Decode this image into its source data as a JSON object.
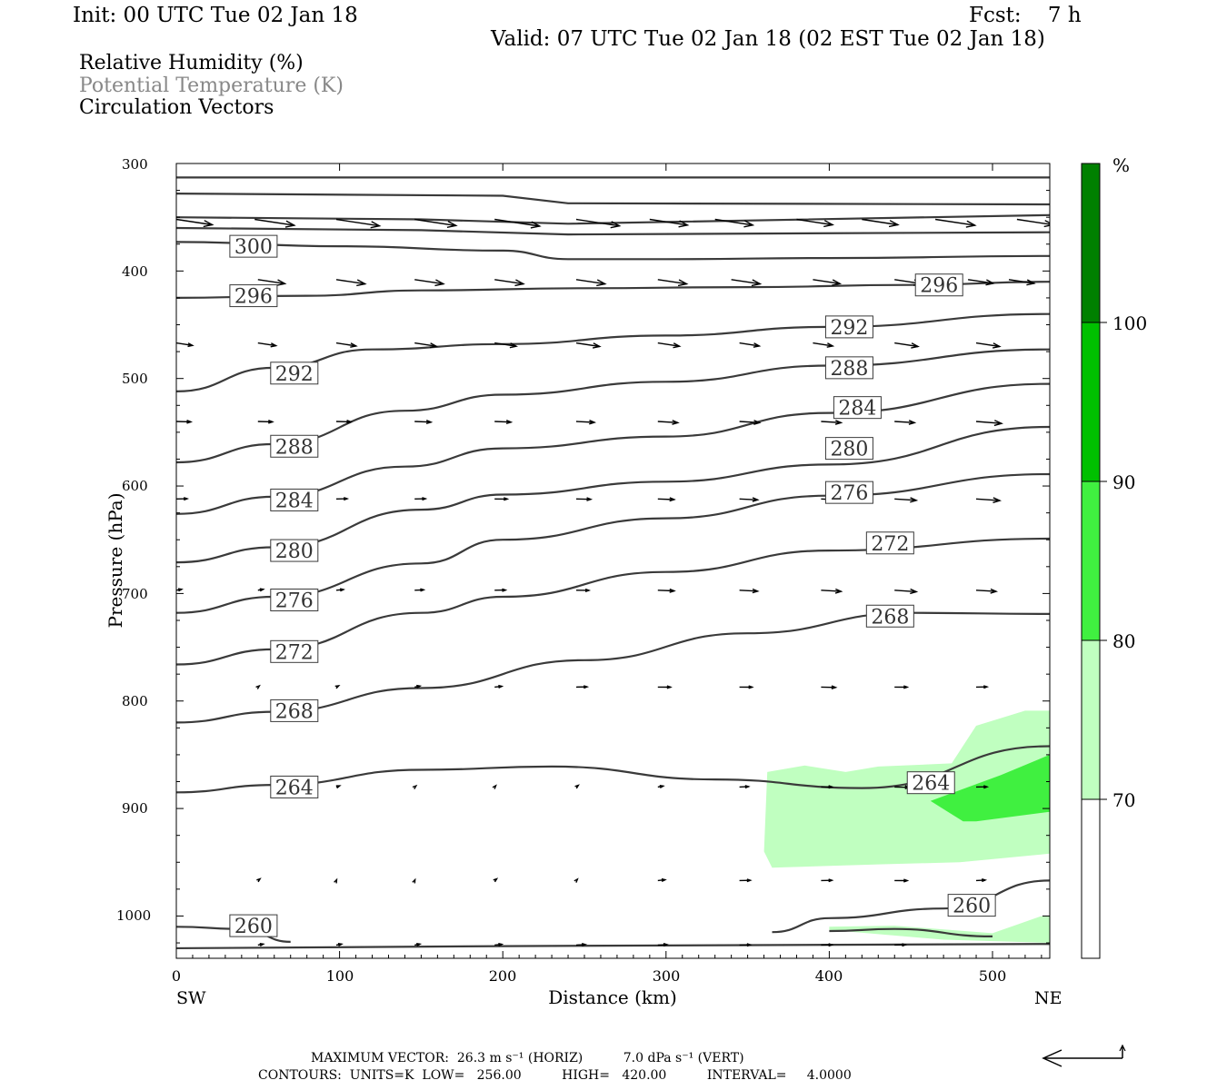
{
  "header": {
    "init": "Init: 00 UTC Tue 02 Jan 18",
    "fcst": "Fcst:    7 h",
    "valid": "Valid: 07 UTC Tue 02 Jan 18 (02 EST Tue 02 Jan 18)"
  },
  "legend": {
    "rh": "Relative Humidity (%)",
    "theta": "Potential Temperature (K)",
    "vectors": "Circulation Vectors"
  },
  "colors": {
    "theta_line": "#3a3a3a",
    "rh_70": "#c0ffc0",
    "rh_80": "#40f040",
    "rh_90": "#00c000",
    "rh_100": "#008000"
  },
  "chart_data": {
    "type": "cross-section",
    "xlabel": "Distance (km)",
    "ylabel": "Pressure (hPa)",
    "xlim": [
      0,
      535
    ],
    "ylim": [
      1030,
      300
    ],
    "x_ticks": [
      "0",
      "100",
      "200",
      "300",
      "400",
      "500"
    ],
    "y_ticks": [
      "300",
      "400",
      "500",
      "600",
      "700",
      "800",
      "900",
      "1000"
    ],
    "x_end_labels": {
      "left": "SW",
      "right": "NE"
    },
    "colorbar": {
      "unit": "%",
      "levels": [
        "70",
        "80",
        "90",
        "100"
      ]
    },
    "theta_contours": [
      {
        "label": "300",
        "label_pos": [
          25,
          377
        ],
        "points": [
          [
            0,
            373
          ],
          [
            100,
            377
          ],
          [
            200,
            381
          ],
          [
            240,
            389
          ],
          [
            300,
            389
          ],
          [
            400,
            388
          ],
          [
            535,
            386
          ]
        ]
      },
      {
        "label": "296",
        "label_pos": [
          25,
          423
        ],
        "points": [
          [
            0,
            425
          ],
          [
            80,
            423
          ],
          [
            150,
            418
          ],
          [
            250,
            416
          ],
          [
            350,
            415
          ],
          [
            450,
            413
          ],
          [
            535,
            410
          ]
        ]
      },
      {
        "label": "296",
        "label_pos": [
          445,
          413
        ],
        "points": []
      },
      {
        "label": "292",
        "label_pos": [
          50,
          495
        ],
        "points": [
          [
            0,
            512
          ],
          [
            60,
            490
          ],
          [
            120,
            473
          ],
          [
            200,
            468
          ],
          [
            300,
            460
          ],
          [
            400,
            452
          ],
          [
            535,
            440
          ]
        ]
      },
      {
        "label": "292",
        "label_pos": [
          390,
          452
        ],
        "points": []
      },
      {
        "label": "288",
        "label_pos": [
          50,
          563
        ],
        "points": [
          [
            0,
            578
          ],
          [
            60,
            561
          ],
          [
            140,
            530
          ],
          [
            200,
            515
          ],
          [
            300,
            503
          ],
          [
            400,
            488
          ],
          [
            535,
            473
          ]
        ]
      },
      {
        "label": "288",
        "label_pos": [
          390,
          490
        ],
        "points": []
      },
      {
        "label": "284",
        "label_pos": [
          50,
          613
        ],
        "points": [
          [
            0,
            626
          ],
          [
            60,
            610
          ],
          [
            140,
            582
          ],
          [
            200,
            565
          ],
          [
            300,
            554
          ],
          [
            400,
            532
          ],
          [
            535,
            505
          ]
        ]
      },
      {
        "label": "284",
        "label_pos": [
          395,
          527
        ],
        "points": []
      },
      {
        "label": "280",
        "label_pos": [
          50,
          660
        ],
        "points": [
          [
            0,
            671
          ],
          [
            60,
            657
          ],
          [
            150,
            622
          ],
          [
            200,
            608
          ],
          [
            300,
            596
          ],
          [
            400,
            580
          ],
          [
            535,
            545
          ]
        ]
      },
      {
        "label": "280",
        "label_pos": [
          390,
          565
        ],
        "points": []
      },
      {
        "label": "276",
        "label_pos": [
          50,
          706
        ],
        "points": [
          [
            0,
            718
          ],
          [
            60,
            703
          ],
          [
            150,
            672
          ],
          [
            200,
            650
          ],
          [
            300,
            630
          ],
          [
            400,
            609
          ],
          [
            535,
            589
          ]
        ]
      },
      {
        "label": "276",
        "label_pos": [
          390,
          606
        ],
        "points": []
      },
      {
        "label": "272",
        "label_pos": [
          50,
          754
        ],
        "points": [
          [
            0,
            766
          ],
          [
            60,
            752
          ],
          [
            150,
            718
          ],
          [
            200,
            703
          ],
          [
            300,
            680
          ],
          [
            400,
            660
          ],
          [
            535,
            649
          ]
        ]
      },
      {
        "label": "272",
        "label_pos": [
          415,
          653
        ],
        "points": []
      },
      {
        "label": "268",
        "label_pos": [
          50,
          809
        ],
        "points": [
          [
            0,
            820
          ],
          [
            60,
            810
          ],
          [
            150,
            788
          ],
          [
            250,
            762
          ],
          [
            350,
            737
          ],
          [
            450,
            718
          ],
          [
            535,
            719
          ]
        ]
      },
      {
        "label": "268",
        "label_pos": [
          415,
          721
        ],
        "points": []
      },
      {
        "label": "264",
        "label_pos": [
          50,
          880
        ],
        "points": [
          [
            0,
            885
          ],
          [
            60,
            878
          ],
          [
            150,
            864
          ],
          [
            230,
            861
          ],
          [
            330,
            873
          ],
          [
            420,
            881
          ],
          [
            535,
            842
          ]
        ]
      },
      {
        "label": "264",
        "label_pos": [
          440,
          876
        ],
        "points": []
      },
      {
        "label": "260",
        "label_pos": [
          25,
          1009
        ],
        "points": [
          [
            0,
            1010
          ],
          [
            40,
            1012
          ],
          [
            70,
            1024
          ]
        ]
      },
      {
        "label": "260",
        "label_pos": [
          465,
          990
        ],
        "points": [
          [
            365,
            1015
          ],
          [
            400,
            1002
          ],
          [
            470,
            993
          ],
          [
            535,
            967
          ]
        ]
      },
      {
        "label": "",
        "label_pos": null,
        "points": [
          [
            400,
            1014
          ],
          [
            440,
            1012
          ],
          [
            500,
            1019
          ]
        ]
      }
    ],
    "rh_regions": [
      {
        "level": "70-80",
        "points": [
          [
            362,
            866
          ],
          [
            385,
            860
          ],
          [
            410,
            866
          ],
          [
            430,
            861
          ],
          [
            475,
            858
          ],
          [
            490,
            823
          ],
          [
            520,
            809
          ],
          [
            535,
            809
          ],
          [
            535,
            942
          ],
          [
            480,
            950
          ],
          [
            430,
            952
          ],
          [
            365,
            955
          ],
          [
            360,
            940
          ]
        ]
      },
      {
        "level": "80-90",
        "points": [
          [
            462,
            893
          ],
          [
            505,
            869
          ],
          [
            535,
            850
          ],
          [
            535,
            903
          ],
          [
            490,
            912
          ],
          [
            482,
            912
          ]
        ]
      },
      {
        "level": "70-80",
        "points": [
          [
            400,
            1010
          ],
          [
            440,
            1009
          ],
          [
            500,
            1016
          ],
          [
            530,
            1000
          ],
          [
            535,
            1000
          ],
          [
            535,
            1025
          ],
          [
            470,
            1022
          ],
          [
            400,
            1013
          ]
        ]
      }
    ],
    "vectors_rows": [
      {
        "p": 352,
        "u": [
          [
            0,
            40
          ],
          [
            48,
            44
          ],
          [
            98,
            48
          ],
          [
            146,
            46
          ],
          [
            195,
            50
          ],
          [
            245,
            48
          ],
          [
            290,
            42
          ],
          [
            330,
            42
          ],
          [
            380,
            40
          ],
          [
            420,
            40
          ],
          [
            465,
            44
          ],
          [
            515,
            40
          ]
        ]
      },
      {
        "p": 408,
        "u": [
          [
            50,
            30
          ],
          [
            98,
            32
          ],
          [
            146,
            32
          ],
          [
            195,
            32
          ],
          [
            245,
            32
          ],
          [
            295,
            32
          ],
          [
            340,
            32
          ],
          [
            390,
            30
          ],
          [
            440,
            30
          ],
          [
            485,
            28
          ],
          [
            510,
            28
          ]
        ]
      },
      {
        "p": 467,
        "u": [
          [
            0,
            18
          ],
          [
            50,
            20
          ],
          [
            98,
            22
          ],
          [
            146,
            24
          ],
          [
            195,
            24
          ],
          [
            245,
            26
          ],
          [
            295,
            24
          ],
          [
            345,
            22
          ],
          [
            390,
            22
          ],
          [
            440,
            26
          ],
          [
            490,
            26
          ]
        ]
      },
      {
        "p": 540,
        "u": [
          [
            0,
            16
          ],
          [
            50,
            16
          ],
          [
            98,
            16
          ],
          [
            146,
            18
          ],
          [
            195,
            18
          ],
          [
            245,
            20
          ],
          [
            295,
            22
          ],
          [
            345,
            22
          ],
          [
            395,
            22
          ],
          [
            440,
            22
          ],
          [
            490,
            28
          ]
        ]
      },
      {
        "p": 612,
        "u": [
          [
            0,
            12
          ],
          [
            98,
            12
          ],
          [
            146,
            12
          ],
          [
            195,
            14
          ],
          [
            245,
            16
          ],
          [
            295,
            18
          ],
          [
            345,
            20
          ],
          [
            395,
            22
          ],
          [
            440,
            24
          ],
          [
            490,
            26
          ]
        ]
      },
      {
        "p": 697,
        "u": [
          [
            0,
            6
          ],
          [
            50,
            6
          ],
          [
            98,
            8
          ],
          [
            146,
            10
          ],
          [
            195,
            12
          ],
          [
            245,
            14
          ],
          [
            295,
            18
          ],
          [
            345,
            20
          ],
          [
            395,
            22
          ],
          [
            440,
            24
          ],
          [
            490,
            22
          ]
        ]
      },
      {
        "p": 787,
        "u": [
          [
            50,
            2
          ],
          [
            98,
            3
          ],
          [
            146,
            6
          ],
          [
            195,
            8
          ],
          [
            245,
            12
          ],
          [
            295,
            14
          ],
          [
            345,
            14
          ],
          [
            395,
            16
          ],
          [
            440,
            14
          ],
          [
            490,
            12
          ]
        ]
      },
      {
        "p": 880,
        "u": [
          [
            98,
            4
          ],
          [
            146,
            2
          ],
          [
            195,
            -2
          ],
          [
            245,
            -3
          ],
          [
            295,
            6
          ],
          [
            345,
            10
          ],
          [
            395,
            12
          ],
          [
            440,
            16
          ],
          [
            490,
            12
          ]
        ]
      },
      {
        "p": 967,
        "u": [
          [
            50,
            -3
          ],
          [
            98,
            -1
          ],
          [
            146,
            -1
          ],
          [
            195,
            -3
          ],
          [
            245,
            -2
          ],
          [
            295,
            8
          ],
          [
            345,
            12
          ],
          [
            395,
            12
          ],
          [
            440,
            14
          ],
          [
            490,
            10
          ]
        ]
      },
      {
        "p": 1027,
        "u": [
          [
            50,
            6
          ],
          [
            98,
            6
          ],
          [
            146,
            6
          ],
          [
            195,
            8
          ],
          [
            245,
            10
          ],
          [
            295,
            10
          ],
          [
            345,
            12
          ],
          [
            395,
            12
          ],
          [
            440,
            12
          ]
        ]
      }
    ]
  },
  "footer": {
    "max_vector_line": "MAXIMUM VECTOR:  26.3 m s⁻¹ (HORIZ)          7.0 dPa s⁻¹ (VERT)",
    "contours_line": "CONTOURS:  UNITS=K  LOW=   256.00          HIGH=   420.00          INTERVAL=     4.0000"
  }
}
